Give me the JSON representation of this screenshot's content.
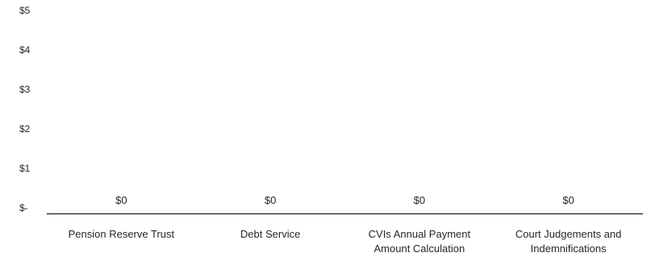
{
  "chart_data": {
    "type": "bar",
    "title": "",
    "xlabel": "",
    "ylabel": "",
    "categories": [
      [
        "Pension Reserve Trust"
      ],
      [
        "Debt Service"
      ],
      [
        "CVIs Annual Payment",
        "Amount Calculation"
      ],
      [
        "Court Judgements and",
        "Indemnifications"
      ]
    ],
    "values": [
      0,
      0,
      0,
      0
    ],
    "data_labels": [
      "$0",
      "$0",
      "$0",
      "$0"
    ],
    "yticks": [
      {
        "value": 0,
        "label": "$-"
      },
      {
        "value": 1,
        "label": "$1"
      },
      {
        "value": 2,
        "label": "$2"
      },
      {
        "value": 3,
        "label": "$3"
      },
      {
        "value": 4,
        "label": "$4"
      },
      {
        "value": 5,
        "label": "$5"
      }
    ],
    "ylim": [
      0,
      5
    ],
    "grid": false,
    "legend": "none",
    "colors": {
      "axis": "#000000",
      "bar": "#4472C4",
      "label": "#595959"
    }
  }
}
